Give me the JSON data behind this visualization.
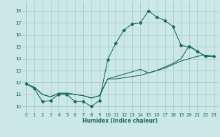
{
  "xlabel": "Humidex (Indice chaleur)",
  "ylabel": "",
  "background_color": "#cce8e4",
  "grid_color": "#aad0cc",
  "line_color": "#1a6b5a",
  "xlim": [
    -0.5,
    23.5
  ],
  "ylim": [
    9.5,
    18.8
  ],
  "xticks": [
    0,
    1,
    2,
    3,
    4,
    5,
    6,
    7,
    8,
    9,
    10,
    11,
    12,
    13,
    14,
    15,
    16,
    17,
    18,
    19,
    20,
    21,
    22,
    23
  ],
  "yticks": [
    10,
    11,
    12,
    13,
    14,
    15,
    16,
    17,
    18
  ],
  "line1_x": [
    0,
    1,
    2,
    3,
    4,
    5,
    6,
    7,
    8,
    9,
    10,
    11,
    12,
    13,
    14,
    15,
    16,
    17,
    18,
    19,
    20,
    21,
    22,
    23
  ],
  "line1_y": [
    11.9,
    11.5,
    10.4,
    10.5,
    11.0,
    11.0,
    10.4,
    10.4,
    10.0,
    10.5,
    13.9,
    15.3,
    16.4,
    16.9,
    17.0,
    18.0,
    17.5,
    17.2,
    16.7,
    15.1,
    15.0,
    14.6,
    14.2,
    14.2
  ],
  "line2_x": [
    0,
    1,
    2,
    3,
    4,
    5,
    6,
    7,
    8,
    9,
    10,
    11,
    12,
    13,
    14,
    15,
    16,
    17,
    18,
    19,
    20,
    21,
    22,
    23
  ],
  "line2_y": [
    11.9,
    11.6,
    11.0,
    10.8,
    11.1,
    11.1,
    11.0,
    10.9,
    10.7,
    10.9,
    12.3,
    12.3,
    12.4,
    12.5,
    12.6,
    12.8,
    13.0,
    13.2,
    13.5,
    13.8,
    14.0,
    14.2,
    14.3,
    14.2
  ],
  "line3_x": [
    0,
    1,
    2,
    3,
    4,
    5,
    6,
    7,
    8,
    9,
    10,
    11,
    12,
    13,
    14,
    15,
    16,
    17,
    18,
    19,
    20,
    21,
    22,
    23
  ],
  "line3_y": [
    11.9,
    11.6,
    11.0,
    10.8,
    11.1,
    11.1,
    11.0,
    10.9,
    10.7,
    10.9,
    12.3,
    12.5,
    12.7,
    12.9,
    13.1,
    12.8,
    13.0,
    13.3,
    13.6,
    14.0,
    15.1,
    14.6,
    14.2,
    14.2
  ]
}
